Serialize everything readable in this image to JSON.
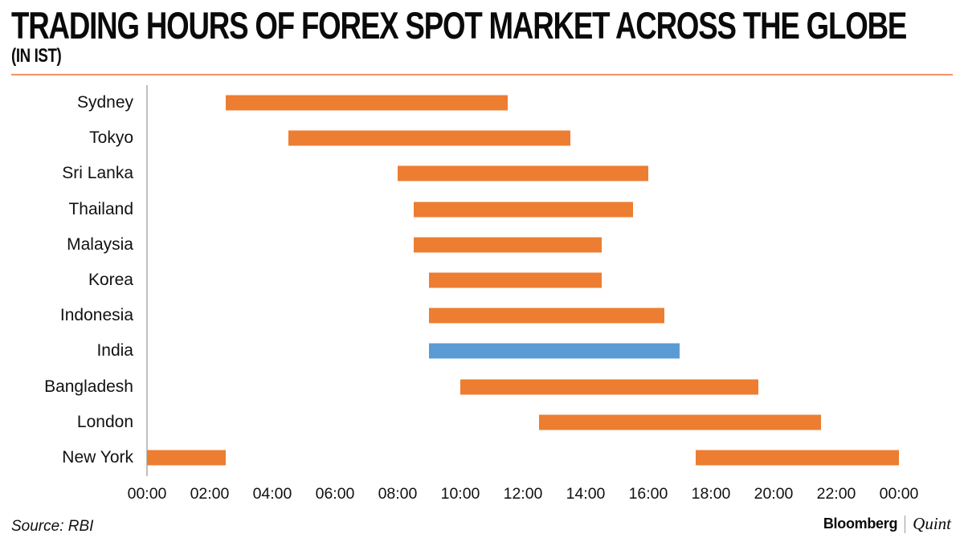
{
  "header": {
    "title": "TRADING HOURS OF FOREX SPOT MARKET ACROSS THE GLOBE",
    "subtitle": "(IN IST)"
  },
  "chart_data": {
    "type": "bar",
    "orientation": "horizontal",
    "title": "TRADING HOURS OF FOREX SPOT MARKET ACROSS THE GLOBE",
    "subtitle": "(IN IST)",
    "time_zone_note": "times shown in IST, 24-hour clock",
    "x_axis": {
      "ticks": [
        "00:00",
        "02:00",
        "04:00",
        "06:00",
        "08:00",
        "10:00",
        "12:00",
        "14:00",
        "16:00",
        "18:00",
        "20:00",
        "22:00",
        "00:00"
      ],
      "range_hours": [
        0,
        24
      ],
      "tick_interval_hours": 2,
      "grid": false
    },
    "categories": [
      "Sydney",
      "Tokyo",
      "Sri Lanka",
      "Thailand",
      "Malaysia",
      "Korea",
      "Indonesia",
      "India",
      "Bangladesh",
      "London",
      "New York"
    ],
    "bars": [
      {
        "category": "Sydney",
        "highlight": false,
        "segments": [
          {
            "start": "02:30",
            "end": "11:30",
            "start_hour": 2.5,
            "end_hour": 11.5
          }
        ]
      },
      {
        "category": "Tokyo",
        "highlight": false,
        "segments": [
          {
            "start": "04:30",
            "end": "13:30",
            "start_hour": 4.5,
            "end_hour": 13.5
          }
        ]
      },
      {
        "category": "Sri Lanka",
        "highlight": false,
        "segments": [
          {
            "start": "08:00",
            "end": "16:00",
            "start_hour": 8.0,
            "end_hour": 16.0
          }
        ]
      },
      {
        "category": "Thailand",
        "highlight": false,
        "segments": [
          {
            "start": "08:30",
            "end": "15:30",
            "start_hour": 8.5,
            "end_hour": 15.5
          }
        ]
      },
      {
        "category": "Malaysia",
        "highlight": false,
        "segments": [
          {
            "start": "08:30",
            "end": "14:30",
            "start_hour": 8.5,
            "end_hour": 14.5
          }
        ]
      },
      {
        "category": "Korea",
        "highlight": false,
        "segments": [
          {
            "start": "09:00",
            "end": "14:30",
            "start_hour": 9.0,
            "end_hour": 14.5
          }
        ]
      },
      {
        "category": "Indonesia",
        "highlight": false,
        "segments": [
          {
            "start": "09:00",
            "end": "16:30",
            "start_hour": 9.0,
            "end_hour": 16.5
          }
        ]
      },
      {
        "category": "India",
        "highlight": true,
        "segments": [
          {
            "start": "09:00",
            "end": "17:00",
            "start_hour": 9.0,
            "end_hour": 17.0
          }
        ]
      },
      {
        "category": "Bangladesh",
        "highlight": false,
        "segments": [
          {
            "start": "10:00",
            "end": "19:30",
            "start_hour": 10.0,
            "end_hour": 19.5
          }
        ]
      },
      {
        "category": "London",
        "highlight": false,
        "segments": [
          {
            "start": "12:30",
            "end": "21:30",
            "start_hour": 12.5,
            "end_hour": 21.5
          }
        ]
      },
      {
        "category": "New York",
        "highlight": false,
        "segments": [
          {
            "start": "00:00",
            "end": "02:30",
            "start_hour": 0.0,
            "end_hour": 2.5
          },
          {
            "start": "17:30",
            "end": "00:00",
            "start_hour": 17.5,
            "end_hour": 24.0
          }
        ]
      }
    ],
    "colors": {
      "bar": "#ED7D31",
      "highlight_bar": "#5B9BD5",
      "axis_line": "#BFBFBF",
      "header_rule": "#F2926B",
      "text": "#000000"
    },
    "legend": null
  },
  "footer": {
    "source": "Source: RBI",
    "brand": {
      "primary": "Bloomberg",
      "separator": "|",
      "secondary": "Quint"
    }
  }
}
